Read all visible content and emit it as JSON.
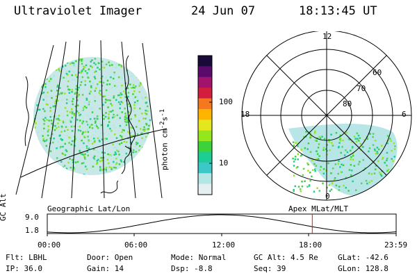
{
  "header": {
    "title": "Ultraviolet Imager",
    "date": "24 Jun 07",
    "time": "18:13:45 UT"
  },
  "colorbar": {
    "unit_label": "photon cm-2s-1",
    "unit_main": "photon cm",
    "unit_sup1": "-2",
    "unit_mid": "s",
    "unit_sup2": "-1",
    "ticks": [
      {
        "label": "100",
        "value": 100
      },
      {
        "label": "10",
        "value": 10
      }
    ],
    "colors": [
      "#1a0a3a",
      "#5a0a6a",
      "#a0146e",
      "#d21e3c",
      "#f5781e",
      "#ffb400",
      "#e6e61e",
      "#96e61e",
      "#3cd23c",
      "#1ecc96",
      "#3cc8c8",
      "#b4e6e6",
      "#e6f0f0"
    ]
  },
  "polar_plot": {
    "mlt_labels": [
      "12",
      "18",
      "6",
      "0"
    ],
    "lat_labels": [
      "60",
      "70",
      "80"
    ]
  },
  "map_caption": "Geographic Lat/Lon",
  "polar_caption": "Apex MLat/MLT",
  "altitude_panel": {
    "axis_label": "GC Alt",
    "y_ticks": [
      "9.0",
      "1.8"
    ],
    "x_ticks": [
      "00:00",
      "06:00",
      "12:00",
      "18:00",
      "23:59"
    ],
    "current_time_hours": 18.23,
    "curve_color": "#000000",
    "marker_color": "#e01010"
  },
  "info": {
    "filter": "Flt: LBHL",
    "door": "Door: Open",
    "mode": "Mode: Normal",
    "gc_alt": "GC Alt: 4.5 Re",
    "glat": "GLat: -42.6",
    "ip": "IP: 36.0",
    "gain": "Gain: 14",
    "dsp": "Dsp:   -8.8",
    "seq": "Seq: 39",
    "glon": "GLon: 128.8"
  }
}
